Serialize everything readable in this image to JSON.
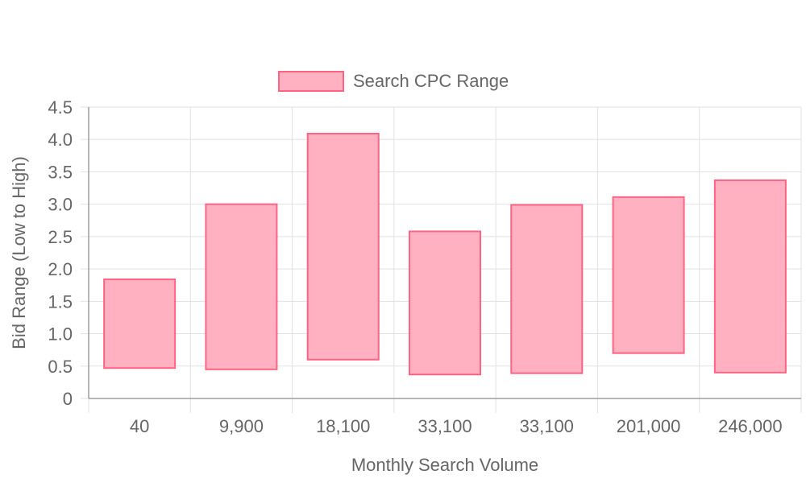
{
  "chart_data": {
    "type": "bar",
    "subtype": "floating-range",
    "title": "",
    "xlabel": "Monthly Search Volume",
    "ylabel": "Bid Range (Low to High)",
    "ylim": [
      0,
      4.5
    ],
    "yticks": [
      "0",
      "0.5",
      "1.0",
      "1.5",
      "2.0",
      "2.5",
      "3.0",
      "3.5",
      "4.0",
      "4.5"
    ],
    "categories": [
      "40",
      "9,900",
      "18,100",
      "33,100",
      "33,100",
      "201,000",
      "246,000"
    ],
    "series": [
      {
        "name": "Search CPC Range",
        "low": [
          0.47,
          0.45,
          0.6,
          0.37,
          0.39,
          0.7,
          0.4
        ],
        "high": [
          1.84,
          3.0,
          4.09,
          2.58,
          2.99,
          3.11,
          3.37
        ]
      }
    ],
    "grid": true,
    "legend": "top-center",
    "colors": {
      "fill": "#ffb1c1",
      "border": "#ff6384",
      "grid": "#e1e1e1",
      "text": "#666666"
    }
  }
}
